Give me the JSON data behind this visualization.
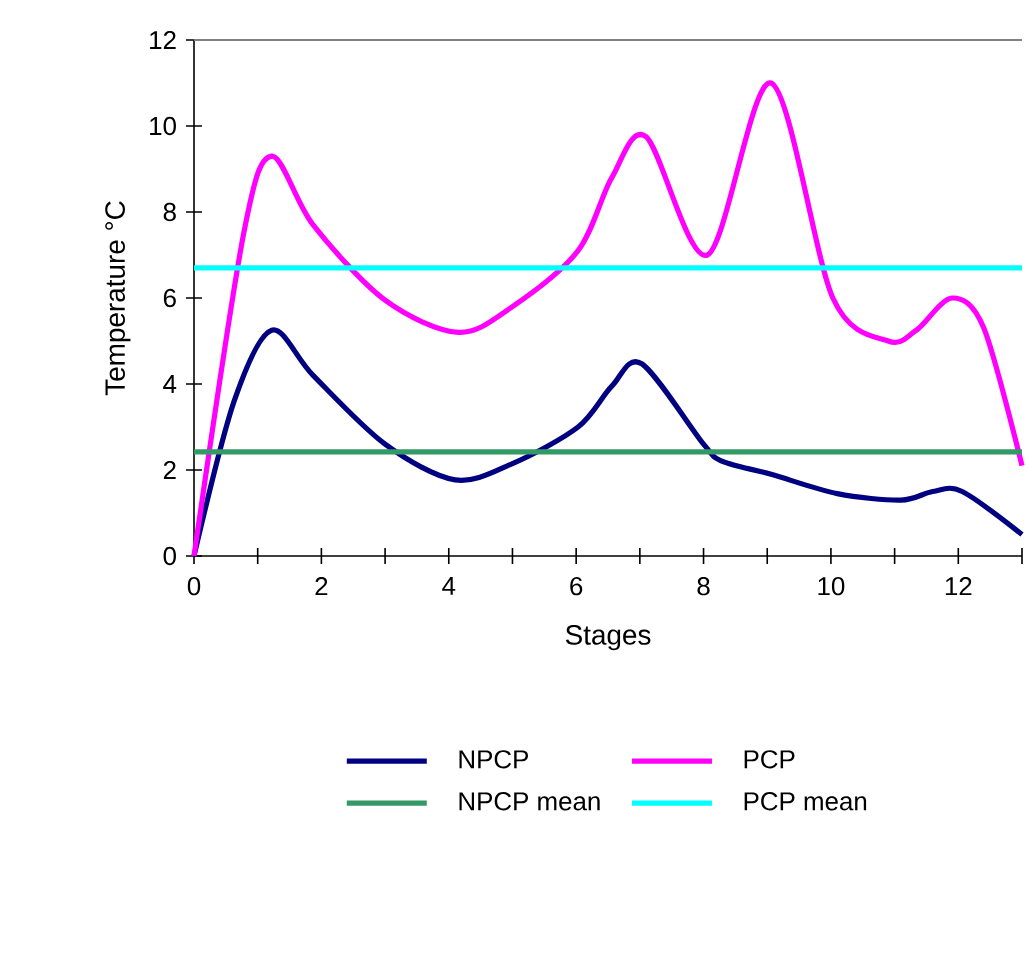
{
  "chart_data": {
    "type": "line",
    "xlabel": "Stages",
    "ylabel": "Temperature  °C",
    "xlim": [
      0,
      13
    ],
    "ylim": [
      0,
      12
    ],
    "xticks": [
      0,
      {
        "value": 1,
        "label": null
      },
      2,
      {
        "value": 3,
        "label": null
      },
      4,
      {
        "value": 5,
        "label": null
      },
      6,
      {
        "value": 7,
        "label": null
      },
      8,
      {
        "value": 9,
        "label": null
      },
      10,
      {
        "value": 11,
        "label": null
      },
      12,
      {
        "value": 13,
        "label": null
      }
    ],
    "yticks": [
      0,
      2,
      4,
      6,
      8,
      10,
      12
    ],
    "grid": false,
    "legend": "bottom",
    "marker": "none",
    "line_style": "solid",
    "series": [
      {
        "name": "NPCP",
        "color": "#000080",
        "x": [
          0,
          0.63,
          1.22,
          1.87,
          3,
          4.1,
          5,
          6.03,
          6.56,
          7.03,
          8,
          8.3,
          9.06,
          10.1,
          11.1,
          11.6,
          12.06,
          13
        ],
        "values": [
          0,
          3.6,
          5.25,
          4.2,
          2.6,
          1.77,
          2.15,
          3.0,
          3.95,
          4.47,
          2.6,
          2.2,
          1.9,
          1.45,
          1.3,
          1.5,
          1.5,
          0.5
        ]
      },
      {
        "name": "PCP",
        "color": "#ff00ff",
        "x": [
          0,
          0.78,
          1.22,
          1.87,
          3,
          4.15,
          5,
          6.03,
          6.56,
          7.1,
          8.06,
          9.06,
          10.03,
          10.9,
          11.34,
          11.9,
          12.4,
          13
        ],
        "values": [
          0,
          7.5,
          9.3,
          7.7,
          5.95,
          5.2,
          5.8,
          7.1,
          8.8,
          9.75,
          7.0,
          11.0,
          6.0,
          5.0,
          5.25,
          6.0,
          5.3,
          2.1
        ]
      },
      {
        "name": "NPCP mean",
        "color": "#339966",
        "x": [
          0,
          13
        ],
        "values": [
          2.42,
          2.42
        ]
      },
      {
        "name": "PCP mean",
        "color": "#00ffff",
        "x": [
          0,
          13
        ],
        "values": [
          6.7,
          6.7
        ]
      }
    ]
  }
}
